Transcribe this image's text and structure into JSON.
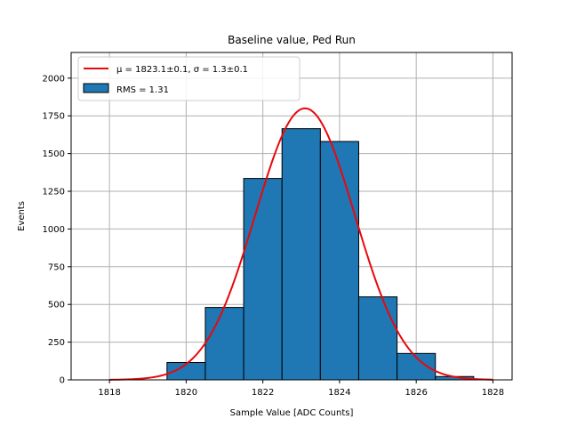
{
  "chart_data": {
    "type": "bar",
    "title": "Baseline value, Ped Run",
    "xlabel": "Sample Value [ADC Counts]",
    "ylabel": "Events",
    "xlim": [
      1817.0,
      1828.5
    ],
    "ylim": [
      0,
      2170
    ],
    "grid": true,
    "legend_position": "top-left",
    "colors": {
      "bar": "#1f77b4",
      "bar_edge": "#000000",
      "fit": "#e8080c",
      "grid": "#b0b0b0"
    },
    "x_ticks": [
      1818,
      1820,
      1822,
      1824,
      1826,
      1828
    ],
    "y_ticks": [
      0,
      250,
      500,
      750,
      1000,
      1250,
      1500,
      1750,
      2000
    ],
    "bins": [
      {
        "x0": 1817.5,
        "x1": 1818.5,
        "value": 0
      },
      {
        "x0": 1818.5,
        "x1": 1819.5,
        "value": 0
      },
      {
        "x0": 1819.5,
        "x1": 1820.5,
        "value": 115
      },
      {
        "x0": 1820.5,
        "x1": 1821.5,
        "value": 480
      },
      {
        "x0": 1821.5,
        "x1": 1822.5,
        "value": 1335
      },
      {
        "x0": 1822.5,
        "x1": 1823.5,
        "value": 1665
      },
      {
        "x0": 1823.5,
        "x1": 1824.5,
        "value": 1580
      },
      {
        "x0": 1824.5,
        "x1": 1825.5,
        "value": 550
      },
      {
        "x0": 1825.5,
        "x1": 1826.5,
        "value": 175
      },
      {
        "x0": 1826.5,
        "x1": 1827.5,
        "value": 22
      }
    ],
    "fit": {
      "mu": 1823.1,
      "sigma": 1.3,
      "amplitude": 1800,
      "x_range": [
        1818,
        1828
      ]
    },
    "legend": [
      {
        "label": "μ = 1823.1±0.1, σ = 1.3±0.1",
        "kind": "line"
      },
      {
        "label": "RMS = 1.31",
        "kind": "patch"
      }
    ]
  }
}
